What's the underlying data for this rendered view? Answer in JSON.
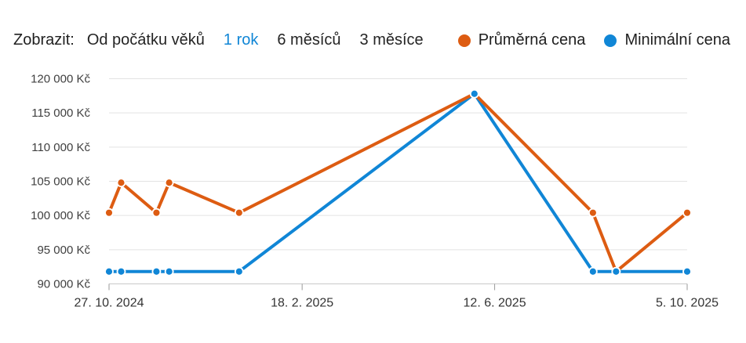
{
  "header": {
    "label": "Zobrazit:",
    "ranges": [
      {
        "label": "Od počátku věků",
        "active": false
      },
      {
        "label": "1 rok",
        "active": true
      },
      {
        "label": "6 měsíců",
        "active": false
      },
      {
        "label": "3 měsíce",
        "active": false
      }
    ],
    "legend": [
      {
        "label": "Průměrná cena",
        "color": "#dd5c12"
      },
      {
        "label": "Minimální cena",
        "color": "#1086d6"
      }
    ]
  },
  "colors": {
    "accent_orange": "#dd5c12",
    "accent_blue": "#1086d6",
    "gridline": "#e3e3e3",
    "axis_line": "#c9c9c9",
    "tick_mark": "#9a9a9a"
  },
  "chart_data": {
    "type": "line",
    "title": "",
    "xlabel": "",
    "ylabel": "",
    "grid": true,
    "legend_position": "top",
    "ylim": [
      90000,
      120000
    ],
    "y_ticks": [
      {
        "value": 120000,
        "label": "120 000 Kč"
      },
      {
        "value": 115000,
        "label": "115 000 Kč"
      },
      {
        "value": 110000,
        "label": "110 000 Kč"
      },
      {
        "value": 105000,
        "label": "105 000 Kč"
      },
      {
        "value": 100000,
        "label": "100 000 Kč"
      },
      {
        "value": 95000,
        "label": "95 000 Kč"
      },
      {
        "value": 90000,
        "label": "90 000 Kč"
      }
    ],
    "x_ticks": [
      {
        "label": "27. 10. 2024",
        "frac": 0.0
      },
      {
        "label": "18. 2. 2025",
        "frac": 0.334
      },
      {
        "label": "12. 6. 2025",
        "frac": 0.667
      },
      {
        "label": "5. 10. 2025",
        "frac": 1.0
      }
    ],
    "series": [
      {
        "name": "Průměrná cena",
        "color": "#dd5c12",
        "points": [
          {
            "frac": 0.0,
            "value": 100400
          },
          {
            "frac": 0.021,
            "value": 104800
          },
          {
            "frac": 0.082,
            "value": 100400
          },
          {
            "frac": 0.104,
            "value": 104800
          },
          {
            "frac": 0.225,
            "value": 100400
          },
          {
            "frac": 0.632,
            "value": 117800
          },
          {
            "frac": 0.837,
            "value": 100400
          },
          {
            "frac": 0.877,
            "value": 91800
          },
          {
            "frac": 1.0,
            "value": 100400
          }
        ]
      },
      {
        "name": "Minimální cena",
        "color": "#1086d6",
        "points": [
          {
            "frac": 0.0,
            "value": 91800
          },
          {
            "frac": 0.021,
            "value": 91800
          },
          {
            "frac": 0.082,
            "value": 91800
          },
          {
            "frac": 0.104,
            "value": 91800
          },
          {
            "frac": 0.225,
            "value": 91800
          },
          {
            "frac": 0.632,
            "value": 117800
          },
          {
            "frac": 0.837,
            "value": 91800
          },
          {
            "frac": 0.877,
            "value": 91800
          },
          {
            "frac": 1.0,
            "value": 91800
          }
        ]
      }
    ]
  }
}
